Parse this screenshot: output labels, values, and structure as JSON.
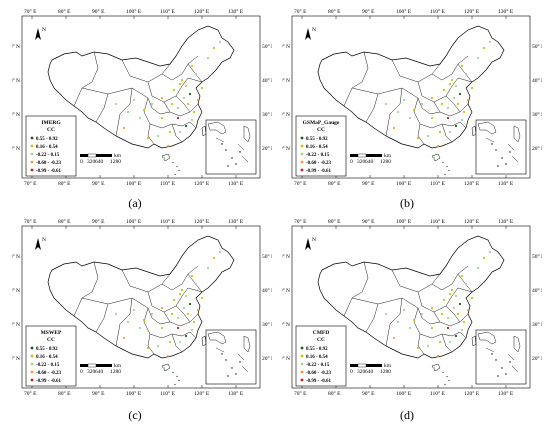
{
  "lon_ticks": [
    "70° E",
    "80° E",
    "90° E",
    "100° E",
    "110° E",
    "120° E",
    "130° E"
  ],
  "lat_ticks": [
    "50° N",
    "40° N",
    "30° N",
    "20° N"
  ],
  "north_label": "N",
  "scale": {
    "unit": "km",
    "labels": [
      "0",
      "320",
      "640",
      "1280"
    ]
  },
  "legend_classes": [
    "0.55 - 0.92",
    "0.16 - 0.54",
    "-0.22 - 0.15",
    "-0.60 - -0.23",
    "-0.99 - -0.61"
  ],
  "class_colors": [
    "#1a5c1a",
    "#c8c800",
    "#9bd89b",
    "#f0a030",
    "#c02020"
  ],
  "panels": [
    {
      "product": "IMERG",
      "metric": "CC",
      "caption": "(a)"
    },
    {
      "product": "GSMaP_Gauge",
      "metric": "CC",
      "caption": "(b)"
    },
    {
      "product": "MSWEP",
      "metric": "CC",
      "caption": "(c)"
    },
    {
      "product": "CMFD",
      "metric": "CC",
      "caption": "(d)"
    }
  ]
}
